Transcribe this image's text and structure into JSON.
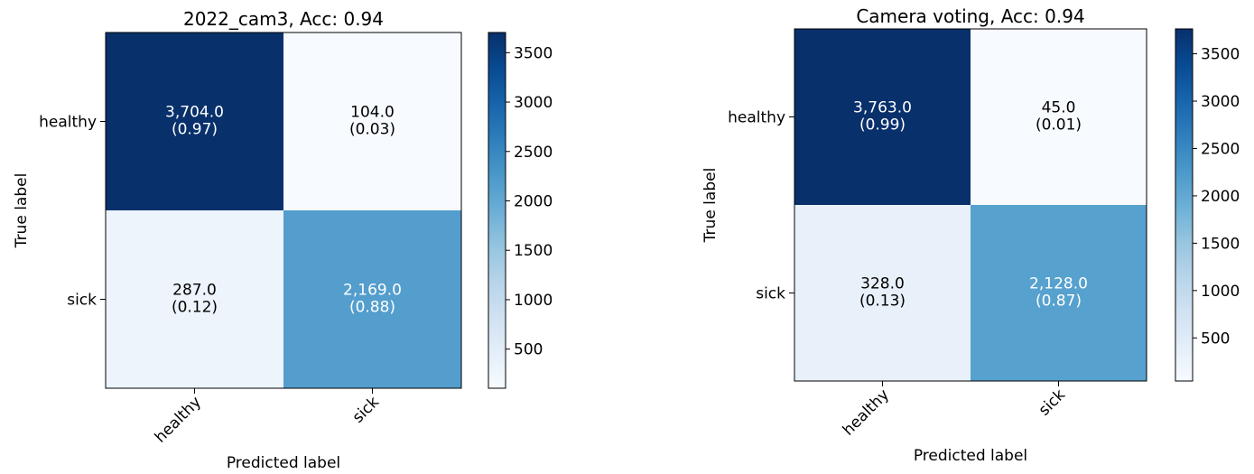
{
  "chart_data": [
    {
      "type": "heatmap",
      "title": "2022_cam3, Acc: 0.94",
      "xlabel": "Predicted label",
      "ylabel": "True label",
      "x_categories": [
        "healthy",
        "sick"
      ],
      "y_categories": [
        "healthy",
        "sick"
      ],
      "values": [
        [
          3704,
          104
        ],
        [
          287,
          2169
        ]
      ],
      "cell_labels": [
        [
          "3,704.0",
          "104.0"
        ],
        [
          "287.0",
          "2,169.0"
        ]
      ],
      "cell_fractions": [
        [
          "(0.97)",
          "(0.03)"
        ],
        [
          "(0.12)",
          "(0.88)"
        ]
      ],
      "colormap": "Blues",
      "colorbar": {
        "range": [
          104,
          3704
        ],
        "ticks": [
          500,
          1000,
          1500,
          2000,
          2500,
          3000,
          3500
        ]
      }
    },
    {
      "type": "heatmap",
      "title": "Camera voting, Acc: 0.94",
      "xlabel": "Predicted label",
      "ylabel": "True label",
      "x_categories": [
        "healthy",
        "sick"
      ],
      "y_categories": [
        "healthy",
        "sick"
      ],
      "values": [
        [
          3763,
          45
        ],
        [
          328,
          2128
        ]
      ],
      "cell_labels": [
        [
          "3,763.0",
          "45.0"
        ],
        [
          "328.0",
          "2,128.0"
        ]
      ],
      "cell_fractions": [
        [
          "(0.99)",
          "(0.01)"
        ],
        [
          "(0.13)",
          "(0.87)"
        ]
      ],
      "colormap": "Blues",
      "colorbar": {
        "range": [
          45,
          3763
        ],
        "ticks": [
          500,
          1000,
          1500,
          2000,
          2500,
          3000,
          3500
        ]
      }
    }
  ]
}
